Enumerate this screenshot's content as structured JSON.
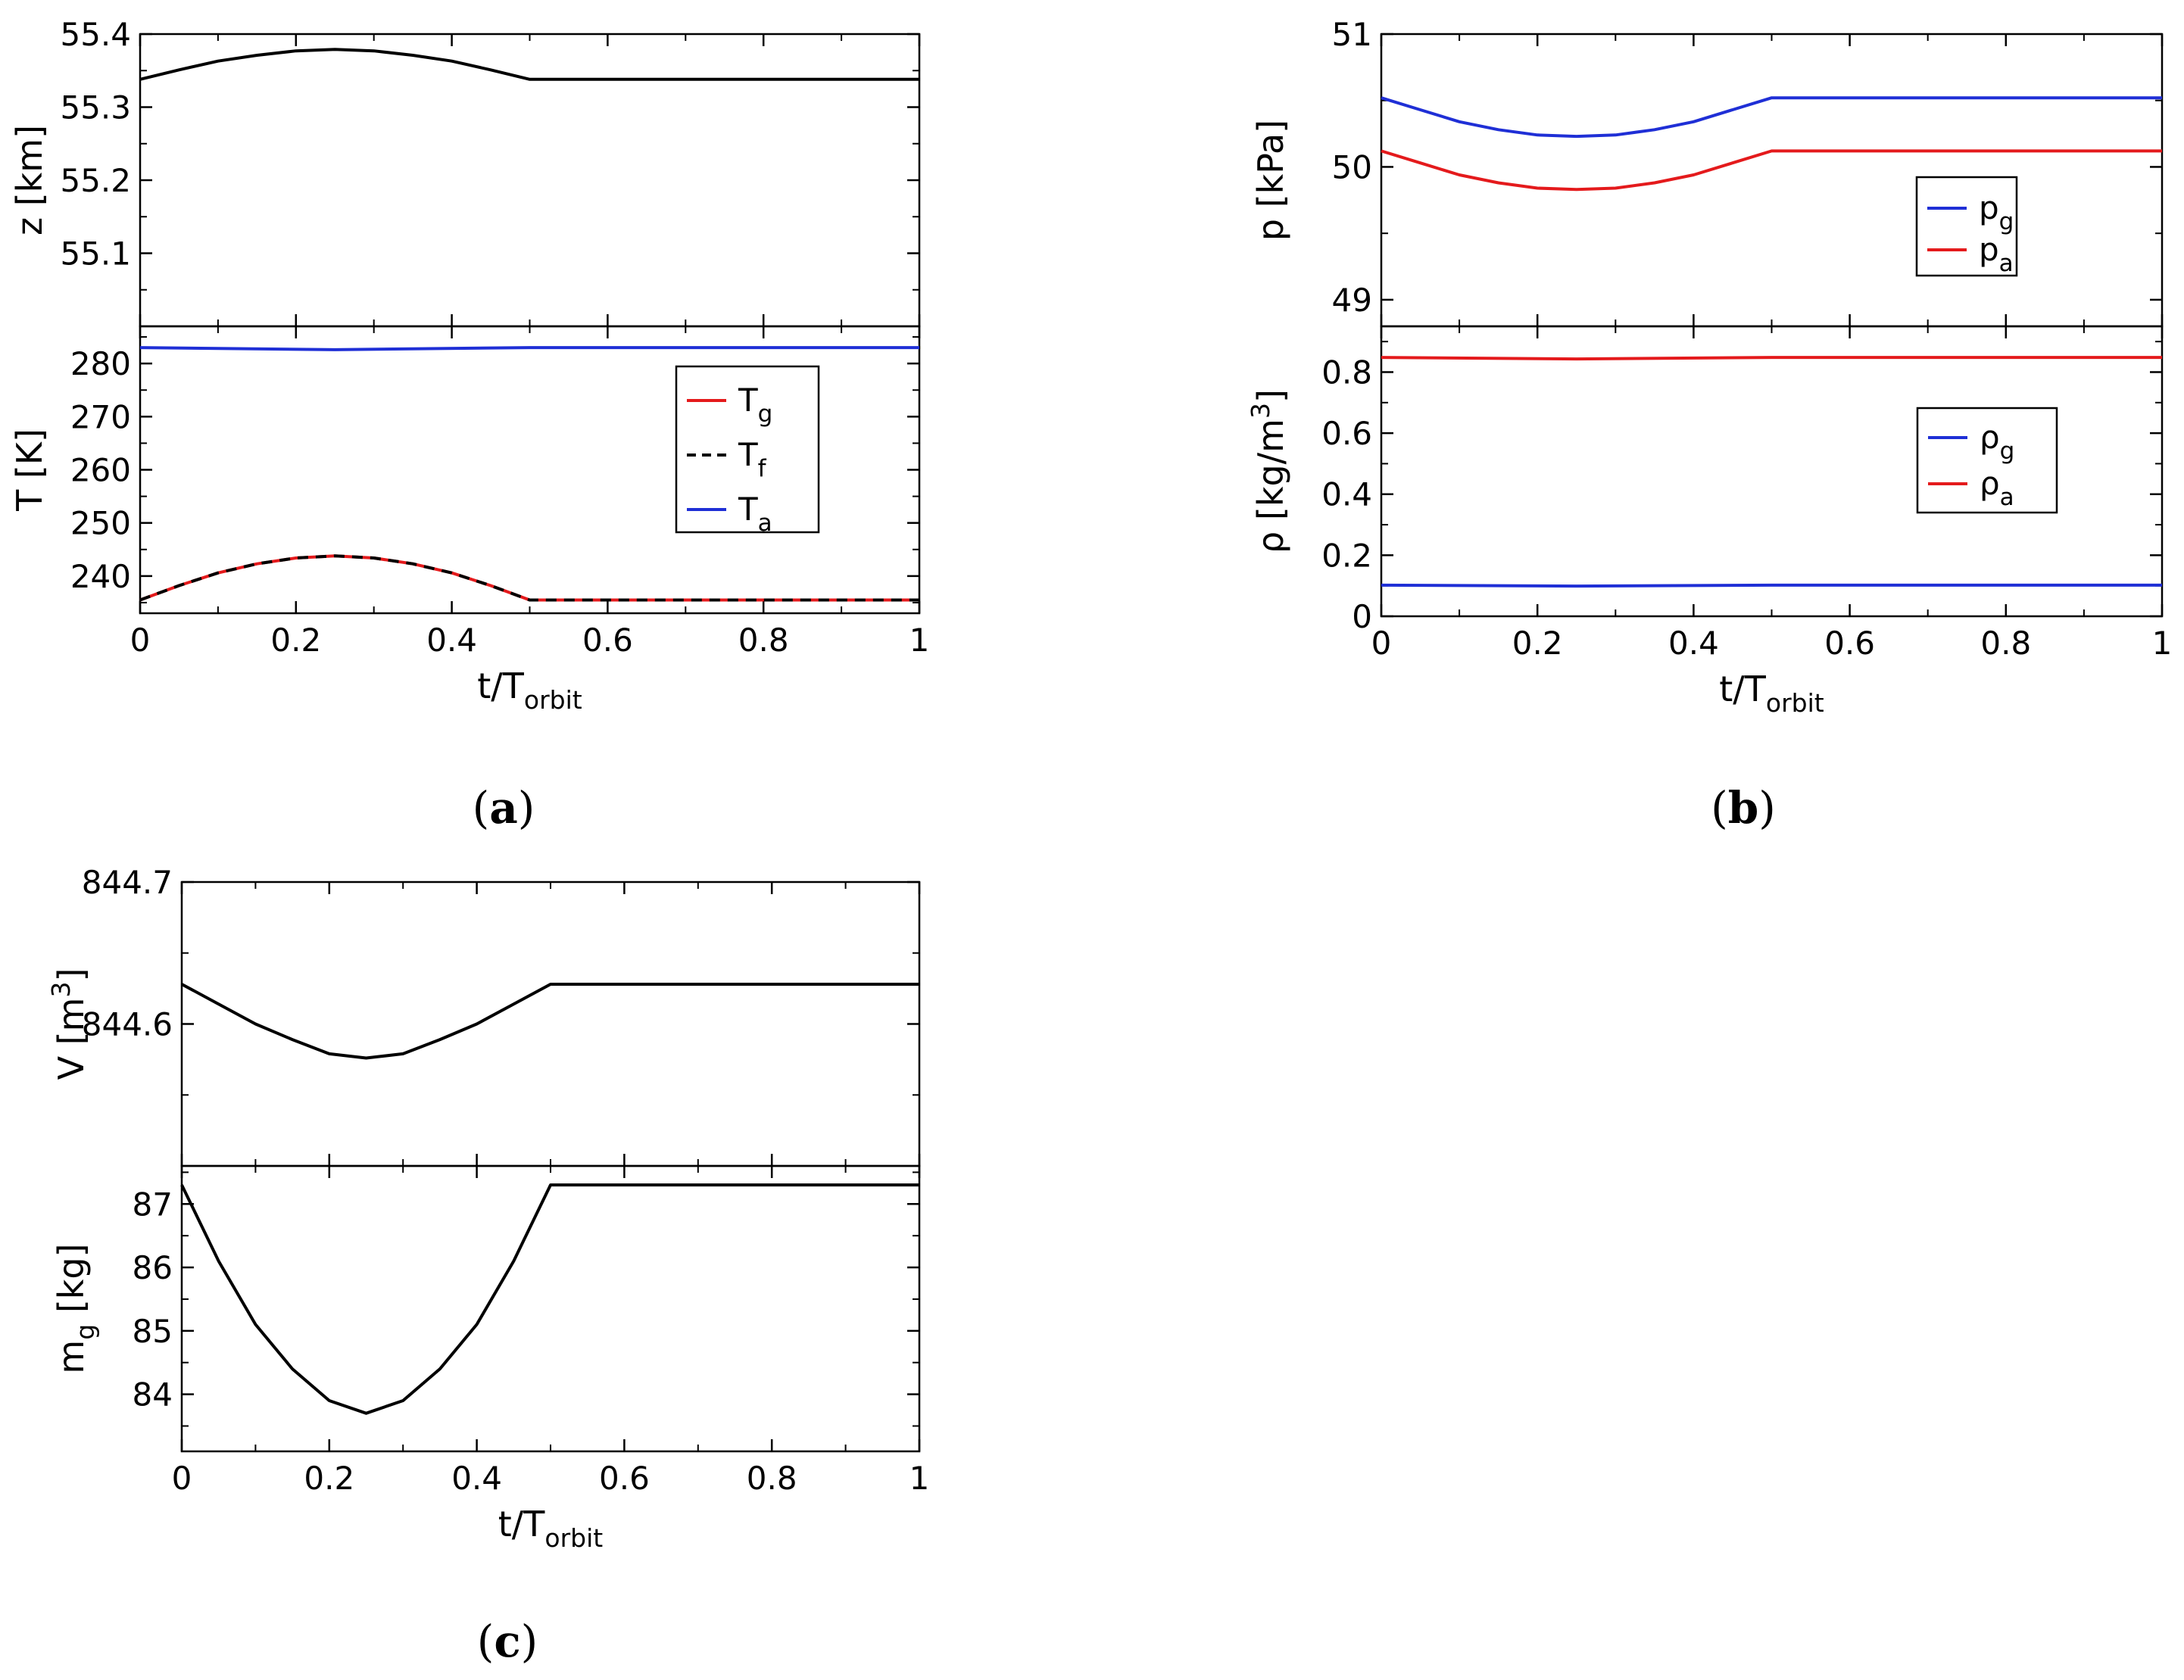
{
  "figure_labels": {
    "a": "a",
    "b": "b",
    "c": "c"
  },
  "chart_data": [
    {
      "id": "a-top",
      "type": "line",
      "panel": "a",
      "ylabel": "z [km]",
      "ylim": [
        55.0,
        55.4
      ],
      "yticks": [
        55.1,
        55.2,
        55.3,
        55.4
      ],
      "xlim": [
        0,
        1
      ],
      "series": [
        {
          "name": "z",
          "color": "#000000",
          "dash": false,
          "points": [
            [
              0,
              55.338
            ],
            [
              0.05,
              55.351
            ],
            [
              0.1,
              55.363
            ],
            [
              0.15,
              55.371
            ],
            [
              0.2,
              55.377
            ],
            [
              0.25,
              55.379
            ],
            [
              0.3,
              55.377
            ],
            [
              0.35,
              55.371
            ],
            [
              0.4,
              55.363
            ],
            [
              0.45,
              55.351
            ],
            [
              0.5,
              55.338
            ],
            [
              1,
              55.338
            ]
          ]
        }
      ]
    },
    {
      "id": "a-bottom",
      "type": "line",
      "panel": "a",
      "ylabel": "T [K]",
      "ylim": [
        233,
        287
      ],
      "yticks": [
        240,
        250,
        260,
        270,
        280
      ],
      "xlim": [
        0,
        1
      ],
      "xticks": [
        0,
        0.2,
        0.4,
        0.6,
        0.8,
        1
      ],
      "xticklabels": [
        "0",
        "0.2",
        "0.4",
        "0.6",
        "0.8",
        "1"
      ],
      "xlabel": {
        "main": "t/T",
        "sub": "orbit"
      },
      "legend": [
        {
          "main": "T",
          "sub": "g",
          "color": "#e41a1c",
          "dash": false
        },
        {
          "main": "T",
          "sub": "f",
          "color": "#000000",
          "dash": true
        },
        {
          "main": "T",
          "sub": "a",
          "color": "#1f2fd6",
          "dash": false
        }
      ],
      "series": [
        {
          "name": "T_g",
          "color": "#e41a1c",
          "dash": false,
          "points": [
            [
              0,
              235.5
            ],
            [
              0.05,
              238.2
            ],
            [
              0.1,
              240.6
            ],
            [
              0.15,
              242.3
            ],
            [
              0.2,
              243.4
            ],
            [
              0.25,
              243.8
            ],
            [
              0.3,
              243.4
            ],
            [
              0.35,
              242.3
            ],
            [
              0.4,
              240.6
            ],
            [
              0.45,
              238.2
            ],
            [
              0.5,
              235.5
            ],
            [
              1,
              235.5
            ]
          ]
        },
        {
          "name": "T_f",
          "color": "#000000",
          "dash": true,
          "points": [
            [
              0,
              235.5
            ],
            [
              0.05,
              238.2
            ],
            [
              0.1,
              240.6
            ],
            [
              0.15,
              242.3
            ],
            [
              0.2,
              243.4
            ],
            [
              0.25,
              243.8
            ],
            [
              0.3,
              243.4
            ],
            [
              0.35,
              242.3
            ],
            [
              0.4,
              240.6
            ],
            [
              0.45,
              238.2
            ],
            [
              0.5,
              235.5
            ],
            [
              1,
              235.5
            ]
          ]
        },
        {
          "name": "T_a",
          "color": "#1f2fd6",
          "dash": false,
          "points": [
            [
              0,
              283.0
            ],
            [
              0.25,
              282.6
            ],
            [
              0.5,
              283.0
            ],
            [
              1,
              283.0
            ]
          ]
        }
      ]
    },
    {
      "id": "b-top",
      "type": "line",
      "panel": "b",
      "ylabel": "p [kPa]",
      "ylim": [
        48.8,
        51.0
      ],
      "yticks": [
        49,
        50,
        51
      ],
      "xlim": [
        0,
        1
      ],
      "legend": [
        {
          "main": "p",
          "sub": "g",
          "color": "#1f2fd6",
          "dash": false
        },
        {
          "main": "p",
          "sub": "a",
          "color": "#e41a1c",
          "dash": false
        }
      ],
      "series": [
        {
          "name": "p_g",
          "color": "#1f2fd6",
          "dash": false,
          "points": [
            [
              0,
              50.52
            ],
            [
              0.05,
              50.43
            ],
            [
              0.1,
              50.34
            ],
            [
              0.15,
              50.28
            ],
            [
              0.2,
              50.24
            ],
            [
              0.25,
              50.23
            ],
            [
              0.3,
              50.24
            ],
            [
              0.35,
              50.28
            ],
            [
              0.4,
              50.34
            ],
            [
              0.45,
              50.43
            ],
            [
              0.5,
              50.52
            ],
            [
              1,
              50.52
            ]
          ]
        },
        {
          "name": "p_a",
          "color": "#e41a1c",
          "dash": false,
          "points": [
            [
              0,
              50.12
            ],
            [
              0.05,
              50.03
            ],
            [
              0.1,
              49.94
            ],
            [
              0.15,
              49.88
            ],
            [
              0.2,
              49.84
            ],
            [
              0.25,
              49.83
            ],
            [
              0.3,
              49.84
            ],
            [
              0.35,
              49.88
            ],
            [
              0.4,
              49.94
            ],
            [
              0.45,
              50.03
            ],
            [
              0.5,
              50.12
            ],
            [
              1,
              50.12
            ]
          ]
        }
      ]
    },
    {
      "id": "b-bottom",
      "type": "line",
      "panel": "b",
      "ylabel": "ρ [kg/m",
      "ylabel_sup": "3",
      "ylabel_close": "]",
      "ylim": [
        0,
        0.95
      ],
      "yticks": [
        0,
        0.2,
        0.4,
        0.6,
        0.8
      ],
      "yticklabels": [
        "0",
        "0.2",
        "0.4",
        "0.6",
        "0.8"
      ],
      "xlim": [
        0,
        1
      ],
      "xticks": [
        0,
        0.2,
        0.4,
        0.6,
        0.8,
        1
      ],
      "xticklabels": [
        "0",
        "0.2",
        "0.4",
        "0.6",
        "0.8",
        "1"
      ],
      "xlabel": {
        "main": "t/T",
        "sub": "orbit"
      },
      "legend": [
        {
          "main": "ρ",
          "sub": "g",
          "color": "#1f2fd6",
          "dash": false
        },
        {
          "main": "ρ",
          "sub": "a",
          "color": "#e41a1c",
          "dash": false
        }
      ],
      "series": [
        {
          "name": "ρ_g",
          "color": "#1f2fd6",
          "dash": false,
          "points": [
            [
              0,
              0.102
            ],
            [
              0.25,
              0.099
            ],
            [
              0.5,
              0.102
            ],
            [
              1,
              0.102
            ]
          ]
        },
        {
          "name": "ρ_a",
          "color": "#e41a1c",
          "dash": false,
          "points": [
            [
              0,
              0.848
            ],
            [
              0.25,
              0.843
            ],
            [
              0.5,
              0.848
            ],
            [
              1,
              0.848
            ]
          ]
        }
      ]
    },
    {
      "id": "c-top",
      "type": "line",
      "panel": "c",
      "ylabel": "V [m",
      "ylabel_sup": "3",
      "ylabel_close": "]",
      "ylim": [
        844.5,
        844.7
      ],
      "yticks": [
        844.6,
        844.7
      ],
      "xlim": [
        0,
        1
      ],
      "series": [
        {
          "name": "V",
          "color": "#000000",
          "dash": false,
          "points": [
            [
              0,
              844.628
            ],
            [
              0.05,
              844.614
            ],
            [
              0.1,
              844.6
            ],
            [
              0.15,
              844.589
            ],
            [
              0.2,
              844.579
            ],
            [
              0.25,
              844.576
            ],
            [
              0.3,
              844.579
            ],
            [
              0.35,
              844.589
            ],
            [
              0.4,
              844.6
            ],
            [
              0.45,
              844.614
            ],
            [
              0.5,
              844.628
            ],
            [
              1,
              844.628
            ]
          ]
        }
      ]
    },
    {
      "id": "c-bottom",
      "type": "line",
      "panel": "c",
      "ylabel": {
        "main": "m",
        "sub": "g",
        "rest": " [kg]"
      },
      "ylim": [
        83.1,
        87.6
      ],
      "yticks": [
        84,
        85,
        86,
        87
      ],
      "xlim": [
        0,
        1
      ],
      "xticks": [
        0,
        0.2,
        0.4,
        0.6,
        0.8,
        1
      ],
      "xticklabels": [
        "0",
        "0.2",
        "0.4",
        "0.6",
        "0.8",
        "1"
      ],
      "xlabel": {
        "main": "t/T",
        "sub": "orbit"
      },
      "series": [
        {
          "name": "m_g",
          "color": "#000000",
          "dash": false,
          "points": [
            [
              0,
              87.3
            ],
            [
              0.05,
              86.1
            ],
            [
              0.1,
              85.1
            ],
            [
              0.15,
              84.4
            ],
            [
              0.2,
              83.9
            ],
            [
              0.25,
              83.7
            ],
            [
              0.3,
              83.9
            ],
            [
              0.35,
              84.4
            ],
            [
              0.4,
              85.1
            ],
            [
              0.45,
              86.1
            ],
            [
              0.5,
              87.3
            ],
            [
              1,
              87.3
            ]
          ]
        }
      ]
    }
  ]
}
